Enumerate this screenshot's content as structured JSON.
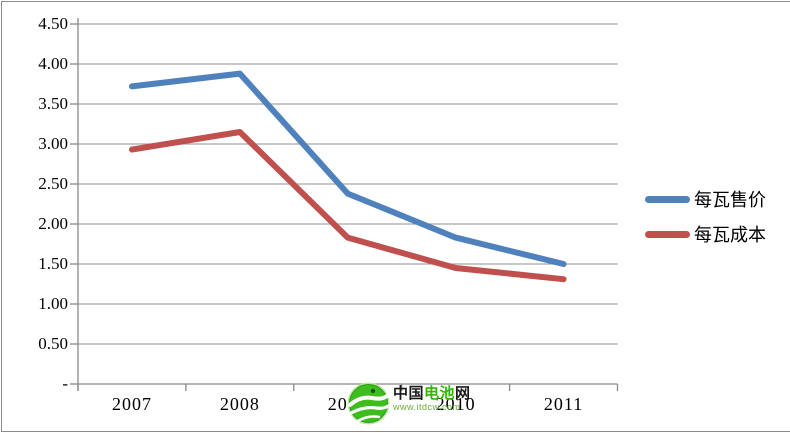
{
  "chart_data": {
    "type": "line",
    "title": "",
    "xlabel": "",
    "ylabel": "",
    "categories": [
      "2007",
      "2008",
      "2009",
      "2010",
      "2011"
    ],
    "series": [
      {
        "name": "每瓦售价",
        "color": "#4F81BD",
        "values": [
          3.72,
          3.88,
          2.38,
          1.83,
          1.5
        ]
      },
      {
        "name": "每瓦成本",
        "color": "#C0504D",
        "values": [
          2.93,
          3.15,
          1.83,
          1.45,
          1.31
        ]
      }
    ],
    "ylim": [
      0,
      4.5
    ],
    "y_tick_step": 0.5,
    "y_tick_labels_bottom_up": [
      "-",
      "0.50",
      "1.00",
      "1.50",
      "2.00",
      "2.50",
      "3.00",
      "3.50",
      "4.00",
      "4.50"
    ],
    "grid": true,
    "gridline_color": "#a6a6a6",
    "axis_color": "#898989",
    "line_width": 6,
    "legend_position": "right"
  },
  "watermark": {
    "site_name_part1": "中国",
    "site_name_part2": "电池",
    "site_name_part3": "网",
    "url": "www.itdcw.com",
    "logo_color": "#3dbd1e"
  },
  "frame": {
    "border_color": "#8c8c8c",
    "background": "#ffffff"
  }
}
